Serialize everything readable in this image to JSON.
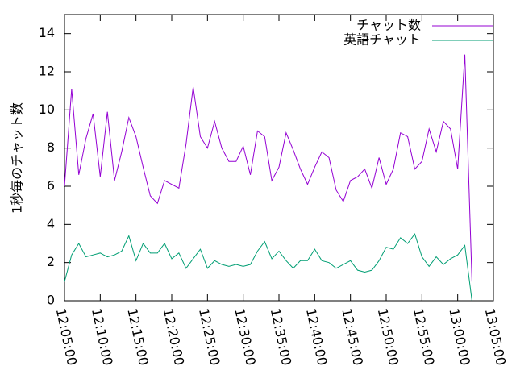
{
  "chart_data": {
    "type": "line",
    "ylabel": "1秒毎のチャット数",
    "x": [
      "12:05:00",
      "12:06:00",
      "12:07:00",
      "12:08:00",
      "12:09:00",
      "12:10:00",
      "12:11:00",
      "12:12:00",
      "12:13:00",
      "12:14:00",
      "12:15:00",
      "12:16:00",
      "12:17:00",
      "12:18:00",
      "12:19:00",
      "12:20:00",
      "12:21:00",
      "12:22:00",
      "12:23:00",
      "12:24:00",
      "12:25:00",
      "12:26:00",
      "12:27:00",
      "12:28:00",
      "12:29:00",
      "12:30:00",
      "12:31:00",
      "12:32:00",
      "12:33:00",
      "12:34:00",
      "12:35:00",
      "12:36:00",
      "12:37:00",
      "12:38:00",
      "12:39:00",
      "12:40:00",
      "12:41:00",
      "12:42:00",
      "12:43:00",
      "12:44:00",
      "12:45:00",
      "12:46:00",
      "12:47:00",
      "12:48:00",
      "12:49:00",
      "12:50:00",
      "12:51:00",
      "12:52:00",
      "12:53:00",
      "12:54:00",
      "12:55:00",
      "12:56:00",
      "12:57:00",
      "12:58:00",
      "12:59:00",
      "13:00:00",
      "13:01:00",
      "13:02:00"
    ],
    "series": [
      {
        "name": "チャット数",
        "color": "#9400d3",
        "values": [
          6.0,
          11.1,
          6.6,
          8.5,
          9.8,
          6.5,
          9.9,
          6.3,
          7.8,
          9.6,
          8.6,
          7.0,
          5.5,
          5.1,
          6.3,
          6.1,
          5.9,
          8.2,
          11.2,
          8.6,
          8.0,
          9.4,
          8.0,
          7.3,
          7.3,
          8.1,
          6.6,
          8.9,
          8.6,
          6.3,
          7.0,
          8.8,
          7.9,
          6.9,
          6.1,
          7.0,
          7.8,
          7.5,
          5.8,
          5.2,
          6.3,
          6.5,
          6.9,
          5.9,
          7.5,
          6.1,
          6.9,
          8.8,
          8.6,
          6.9,
          7.3,
          9.0,
          7.8,
          9.4,
          9.0,
          6.9,
          12.9,
          1.0
        ]
      },
      {
        "name": "英語チャット",
        "color": "#009e73",
        "values": [
          1.0,
          2.4,
          3.0,
          2.3,
          2.4,
          2.5,
          2.3,
          2.4,
          2.6,
          3.4,
          2.1,
          3.0,
          2.5,
          2.5,
          3.0,
          2.2,
          2.5,
          1.7,
          2.2,
          2.7,
          1.7,
          2.1,
          1.9,
          1.8,
          1.9,
          1.8,
          1.9,
          2.6,
          3.1,
          2.2,
          2.6,
          2.1,
          1.7,
          2.1,
          2.1,
          2.7,
          2.1,
          2.0,
          1.7,
          1.9,
          2.1,
          1.6,
          1.5,
          1.6,
          2.1,
          2.8,
          2.7,
          3.3,
          3.0,
          3.5,
          2.3,
          1.8,
          2.3,
          1.9,
          2.2,
          2.4,
          2.9,
          0
        ]
      }
    ],
    "xlim": [
      "12:05:00",
      "13:05:00"
    ],
    "xticks": [
      "12:05:00",
      "12:10:00",
      "12:15:00",
      "12:20:00",
      "12:25:00",
      "12:30:00",
      "12:35:00",
      "12:40:00",
      "12:45:00",
      "12:50:00",
      "12:55:00",
      "13:00:00",
      "13:05:00"
    ],
    "ylim": [
      0,
      15
    ],
    "yticks": [
      0,
      2,
      4,
      6,
      8,
      10,
      12,
      14
    ],
    "legend": "top-right"
  }
}
